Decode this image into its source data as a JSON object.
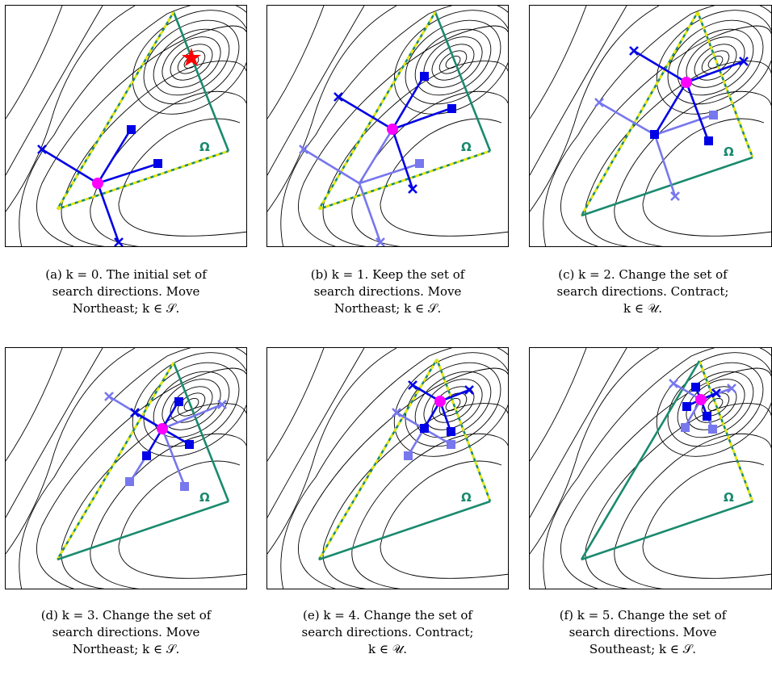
{
  "colors": {
    "contour": "#000000",
    "boundary_green": "#1a8a6e",
    "boundary_dashed_yellow": "#e8e800",
    "active_direction": "#0000e6",
    "previous_direction": "#7777ee",
    "iterate": "#ff00ff",
    "optimum_star": "#ff0000"
  },
  "region_label": "Ω",
  "panels": [
    {
      "id": "a",
      "caption_lines": [
        "(a) k = 0. The initial set of",
        "search directions. Move",
        "Northeast; k ∈ 𝒮."
      ]
    },
    {
      "id": "b",
      "caption_lines": [
        "(b) k = 1. Keep the set of",
        "search directions. Move",
        "Northeast; k ∈ 𝒮."
      ]
    },
    {
      "id": "c",
      "caption_lines": [
        "(c) k = 2. Change the set of",
        "search directions. Contract;",
        "k ∈ 𝒰."
      ]
    },
    {
      "id": "d",
      "caption_lines": [
        "(d) k = 3. Change the set of",
        "search directions. Move",
        "Northeast; k ∈ 𝒮."
      ]
    },
    {
      "id": "e",
      "caption_lines": [
        "(e) k = 4. Change the set of",
        "search directions. Contract;",
        "k ∈ 𝒰."
      ]
    },
    {
      "id": "f",
      "caption_lines": [
        "(f) k = 5. Change the set of",
        "search directions. Move",
        "Southeast; k ∈ 𝒮."
      ]
    }
  ]
}
